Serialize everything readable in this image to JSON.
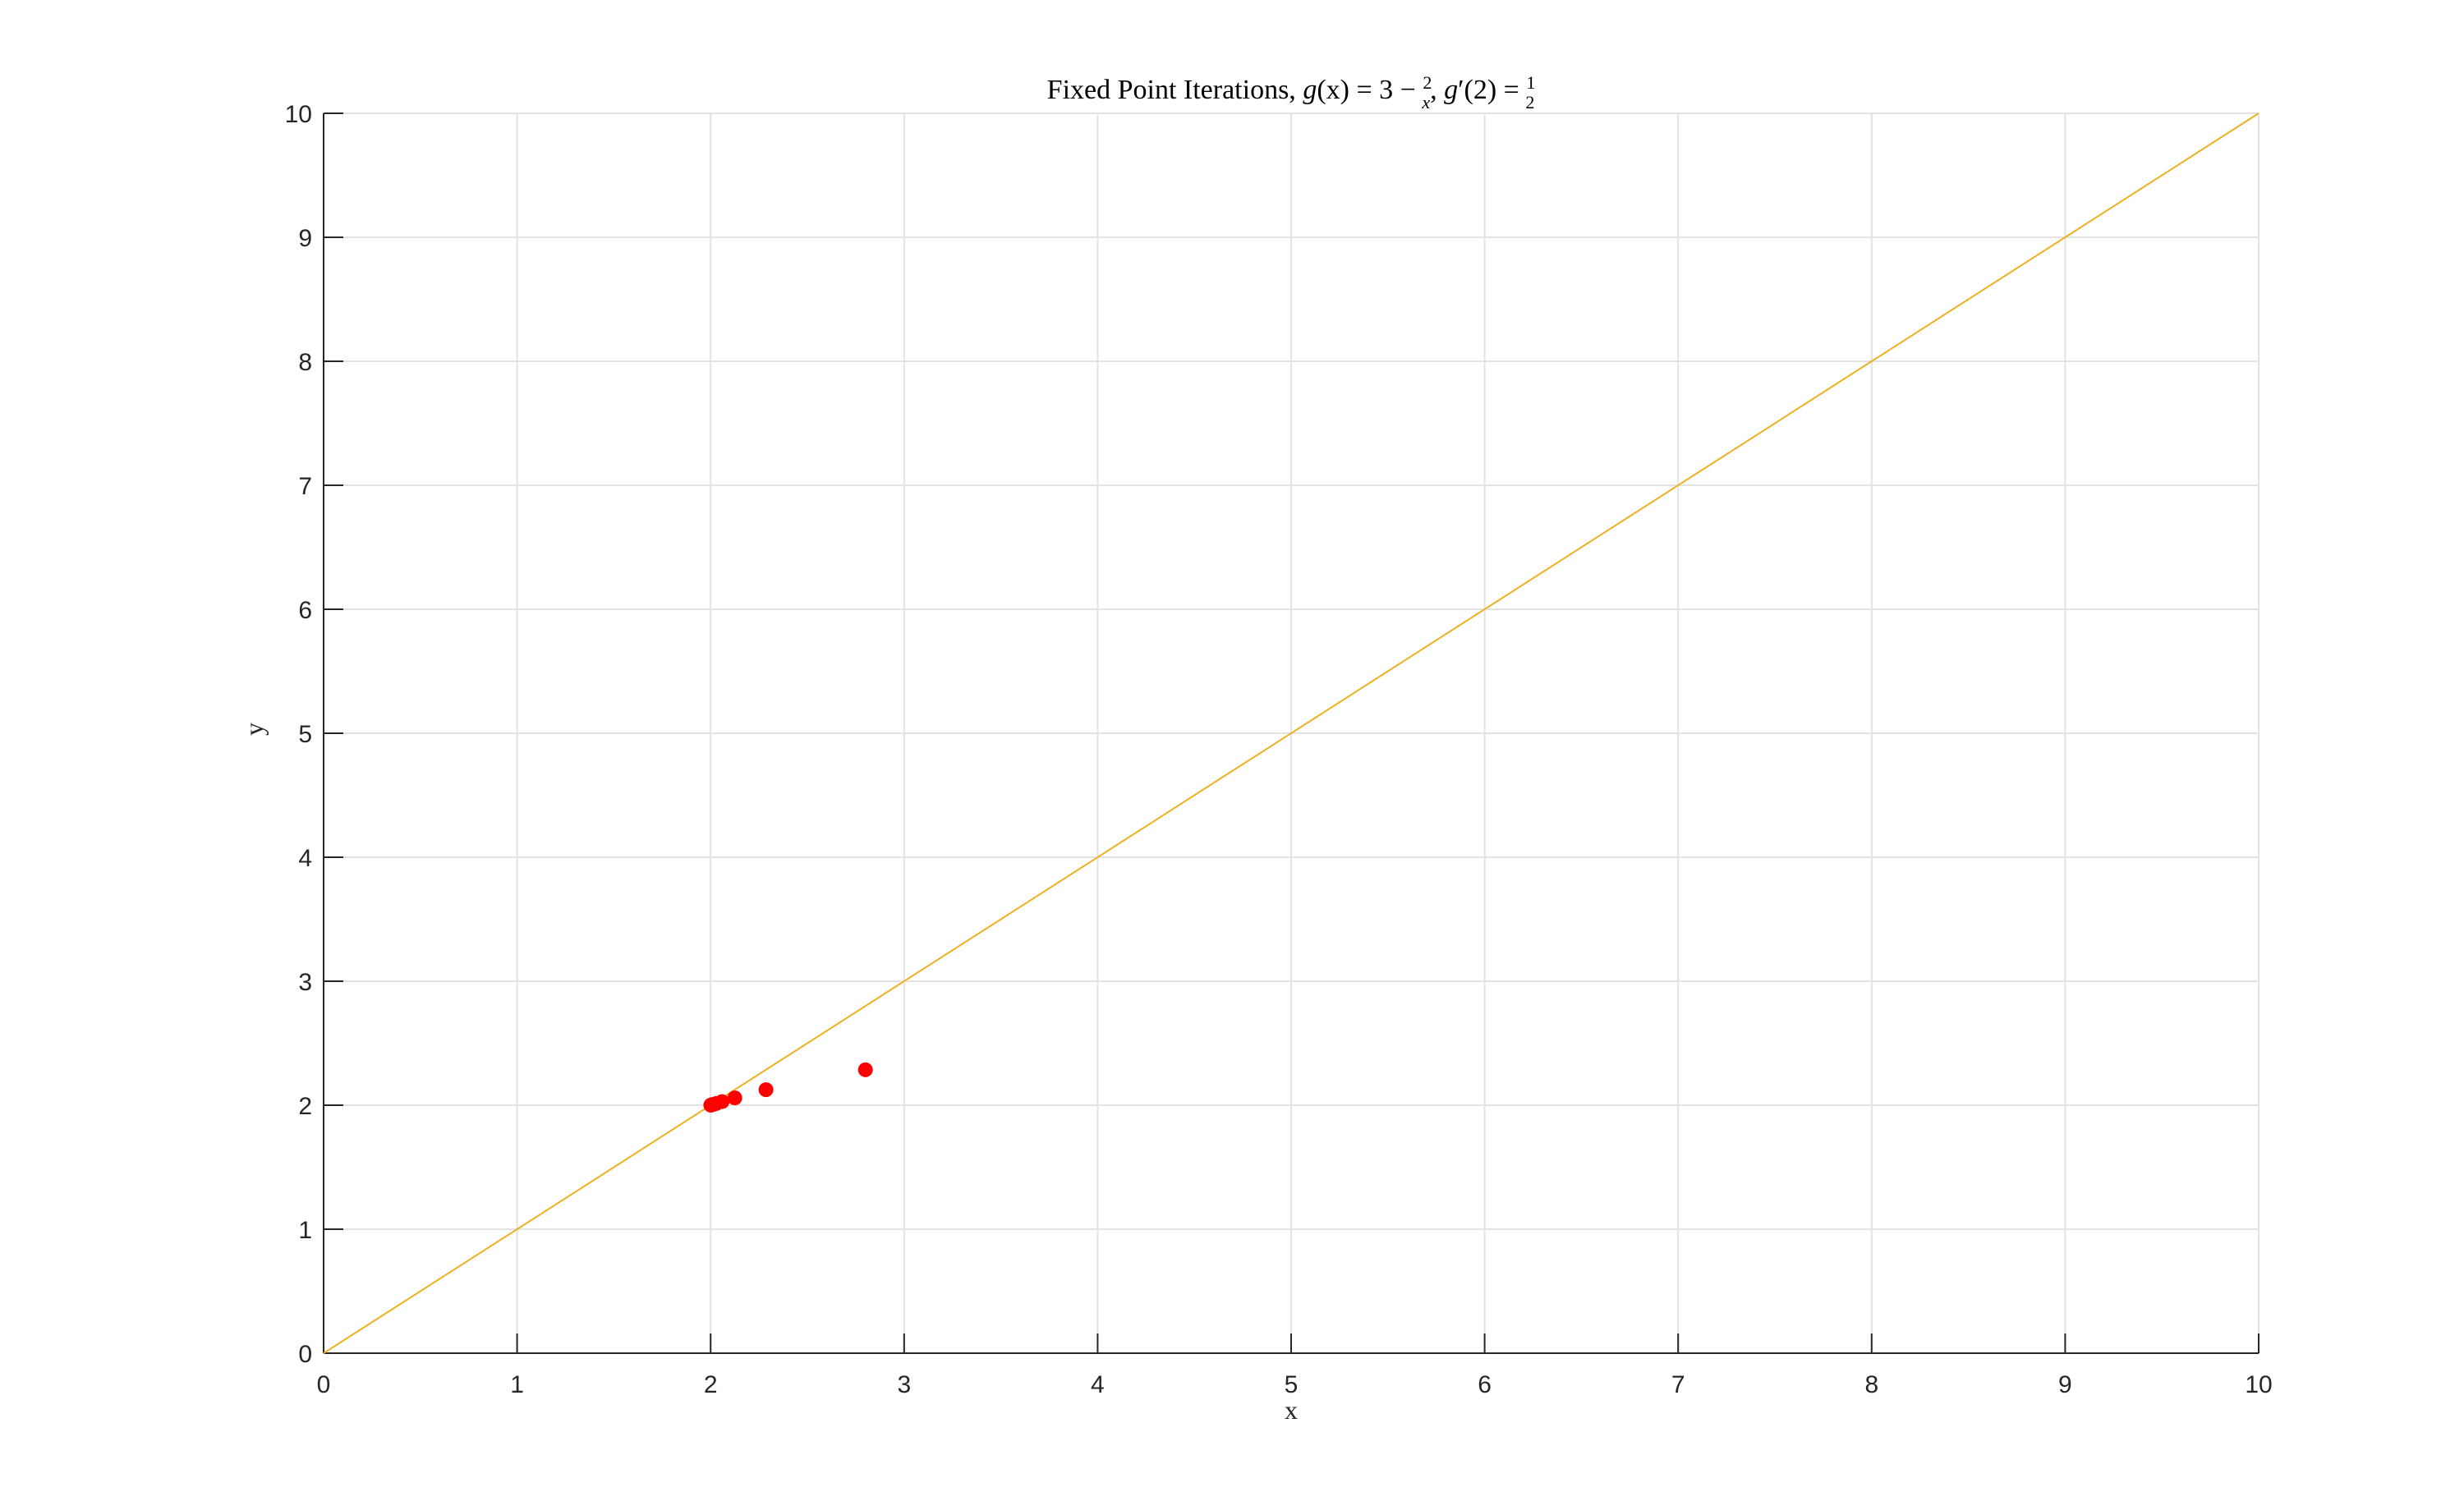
{
  "chart_data": {
    "type": "scatter",
    "title": {
      "prefix": "Fixed Point Iterations, ",
      "g": "g",
      "x1": "(x) = 3 − ",
      "frac1_num": "2",
      "frac1_den": "x",
      "sep": ", ",
      "g2": "g",
      "x2": "′(2) = ",
      "frac2_num": "1",
      "frac2_den": "2"
    },
    "xlabel": "x",
    "ylabel": "y",
    "xlim": [
      0,
      10
    ],
    "ylim": [
      0,
      10
    ],
    "x_ticks": [
      "0",
      "1",
      "2",
      "3",
      "4",
      "5",
      "6",
      "7",
      "8",
      "9",
      "10"
    ],
    "y_ticks": [
      "0",
      "1",
      "2",
      "3",
      "4",
      "5",
      "6",
      "7",
      "8",
      "9",
      "10"
    ],
    "grid": true,
    "series": [
      {
        "kind": "line",
        "x": [
          0,
          10
        ],
        "y": [
          0,
          10
        ],
        "color": "#EDB120"
      },
      {
        "kind": "scatter",
        "x": [
          2.8,
          2.286,
          2.125,
          2.059,
          2.029,
          2.014,
          2.007,
          2.004,
          2.002,
          2.001
        ],
        "y": [
          2.286,
          2.125,
          2.059,
          2.029,
          2.014,
          2.007,
          2.004,
          2.002,
          2.001,
          2.0005
        ],
        "color": "#FF0000"
      }
    ]
  }
}
